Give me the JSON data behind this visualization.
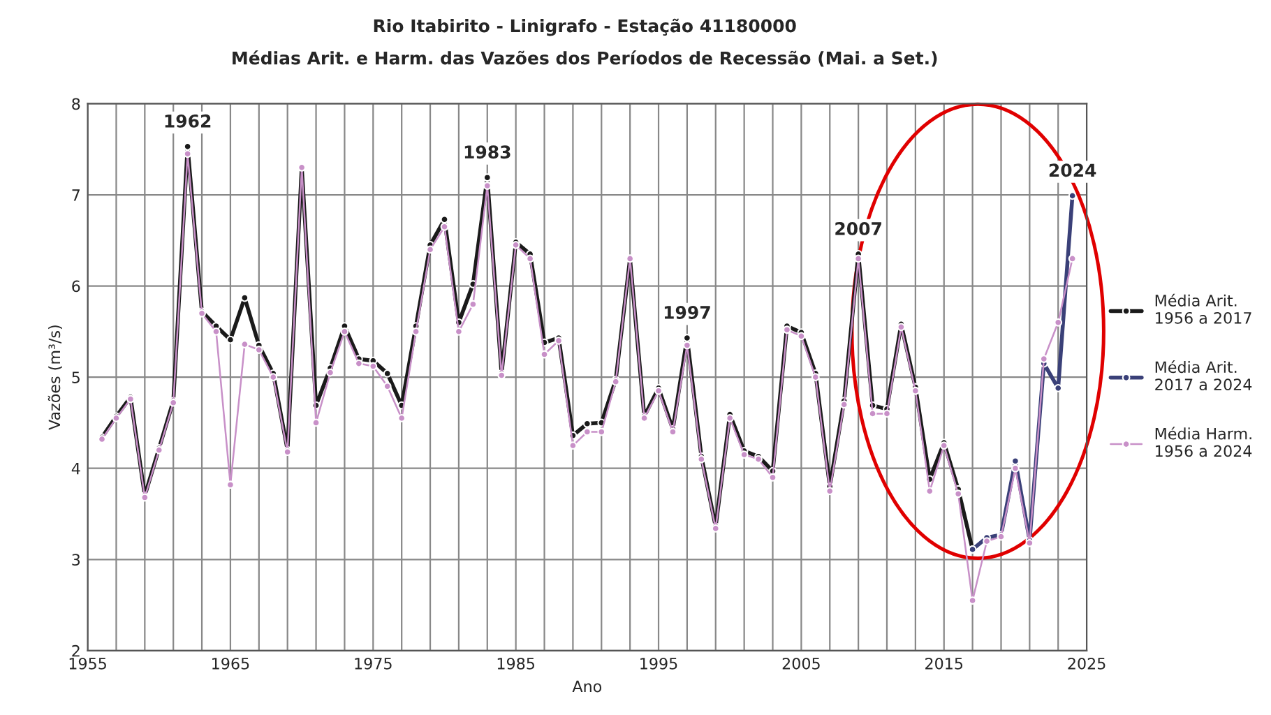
{
  "chart_data": {
    "type": "line",
    "title": "Rio Itabirito - Linigrafo - Estação 41180000",
    "subtitle": "Médias Arit. e Harm. das Vazões dos Períodos de Recessão (Mai. a Set.)",
    "xlabel": "Ano",
    "ylabel": "Vazões (m³/s)",
    "xlim": [
      1955,
      2025
    ],
    "ylim": [
      2,
      8
    ],
    "xticks": [
      1955,
      {
        "value": 1957,
        "label": null
      },
      {
        "value": 1959,
        "label": null
      },
      {
        "value": 1961,
        "label": null
      },
      {
        "value": 1963,
        "label": null
      },
      1965,
      {
        "value": 1967,
        "label": null
      },
      {
        "value": 1969,
        "label": null
      },
      {
        "value": 1971,
        "label": null
      },
      {
        "value": 1973,
        "label": null
      },
      1975,
      {
        "value": 1977,
        "label": null
      },
      {
        "value": 1979,
        "label": null
      },
      {
        "value": 1981,
        "label": null
      },
      {
        "value": 1983,
        "label": null
      },
      1985,
      {
        "value": 1987,
        "label": null
      },
      {
        "value": 1989,
        "label": null
      },
      {
        "value": 1991,
        "label": null
      },
      {
        "value": 1993,
        "label": null
      },
      1995,
      {
        "value": 1997,
        "label": null
      },
      {
        "value": 1999,
        "label": null
      },
      {
        "value": 2001,
        "label": null
      },
      {
        "value": 2003,
        "label": null
      },
      2005,
      {
        "value": 2007,
        "label": null
      },
      {
        "value": 2009,
        "label": null
      },
      {
        "value": 2011,
        "label": null
      },
      {
        "value": 2013,
        "label": null
      },
      2015,
      {
        "value": 2017,
        "label": null
      },
      {
        "value": 2019,
        "label": null
      },
      {
        "value": 2021,
        "label": null
      },
      {
        "value": 2023,
        "label": null
      },
      2025
    ],
    "yticks": [
      2,
      3,
      4,
      5,
      6,
      7,
      8
    ],
    "grid": true,
    "legend": "right",
    "marker": "circle",
    "line_style": "solid",
    "series": [
      {
        "name": "Média Harm.\n1956 a 2024",
        "color": "#c890c8",
        "x": [
          1956,
          1957,
          1958,
          1959,
          1960,
          1961,
          1962,
          1963,
          1964,
          1965,
          1966,
          1967,
          1968,
          1969,
          1970,
          1971,
          1972,
          1973,
          1974,
          1975,
          1976,
          1977,
          1978,
          1979,
          1980,
          1981,
          1982,
          1983,
          1984,
          1985,
          1986,
          1987,
          1988,
          1989,
          1990,
          1991,
          1992,
          1993,
          1994,
          1995,
          1996,
          1997,
          1998,
          1999,
          2000,
          2001,
          2002,
          2003,
          2004,
          2005,
          2006,
          2007,
          2008,
          2009,
          2010,
          2011,
          2012,
          2013,
          2014,
          2015,
          2016,
          2017,
          2018,
          2019,
          2020,
          2021,
          2022,
          2023,
          2024
        ],
        "values": [
          4.32,
          4.55,
          4.76,
          3.68,
          4.2,
          4.72,
          7.45,
          5.7,
          5.5,
          3.82,
          5.36,
          5.3,
          5.0,
          4.18,
          7.3,
          4.5,
          5.05,
          5.5,
          5.15,
          5.12,
          4.9,
          4.55,
          5.5,
          6.4,
          6.65,
          5.5,
          5.8,
          7.1,
          5.02,
          6.45,
          6.3,
          5.25,
          5.4,
          4.25,
          4.4,
          4.4,
          4.95,
          6.3,
          4.55,
          4.85,
          4.4,
          5.35,
          4.1,
          3.34,
          4.55,
          4.15,
          4.1,
          3.9,
          5.52,
          5.45,
          5.0,
          3.75,
          4.7,
          6.3,
          4.6,
          4.6,
          5.55,
          4.85,
          3.75,
          4.25,
          3.72,
          2.55,
          3.2,
          3.25,
          4.0,
          3.18,
          5.2,
          5.6,
          6.3
        ]
      },
      {
        "name": "Média Arit.\n1956 a 2017",
        "color": "#1a1a1a",
        "x": [
          1956,
          1957,
          1958,
          1959,
          1960,
          1961,
          1962,
          1963,
          1964,
          1965,
          1966,
          1967,
          1968,
          1969,
          1970,
          1971,
          1972,
          1973,
          1974,
          1975,
          1976,
          1977,
          1978,
          1979,
          1980,
          1981,
          1982,
          1983,
          1984,
          1985,
          1986,
          1987,
          1988,
          1989,
          1990,
          1991,
          1992,
          1993,
          1994,
          1995,
          1996,
          1997,
          1998,
          1999,
          2000,
          2001,
          2002,
          2003,
          2004,
          2005,
          2006,
          2007,
          2008,
          2009,
          2010,
          2011,
          2012,
          2013,
          2014,
          2015,
          2016,
          2017
        ],
        "values": [
          4.34,
          4.57,
          4.78,
          3.7,
          4.22,
          4.74,
          7.53,
          5.72,
          5.56,
          5.41,
          5.87,
          5.35,
          5.04,
          4.2,
          7.3,
          4.69,
          5.1,
          5.56,
          5.2,
          5.18,
          5.04,
          4.69,
          5.56,
          6.45,
          6.73,
          5.6,
          6.02,
          7.19,
          5.04,
          6.48,
          6.35,
          5.38,
          5.43,
          4.36,
          4.49,
          4.5,
          4.97,
          6.3,
          4.57,
          4.88,
          4.43,
          5.43,
          4.13,
          3.36,
          4.59,
          4.19,
          4.13,
          3.97,
          5.56,
          5.49,
          5.04,
          3.8,
          4.74,
          6.35,
          4.69,
          4.65,
          5.58,
          4.89,
          3.88,
          4.28,
          3.77,
          3.11
        ]
      },
      {
        "name": "Média Arit.\n2017 a 2024",
        "color": "#3a4078",
        "x": [
          2017,
          2018,
          2019,
          2020,
          2021,
          2022,
          2023,
          2024
        ],
        "values": [
          3.11,
          3.24,
          3.27,
          4.08,
          3.21,
          5.15,
          4.88,
          6.99
        ]
      }
    ],
    "annotations": [
      {
        "text": "1962",
        "x": 1962,
        "y": 7.53
      },
      {
        "text": "1983",
        "x": 1983,
        "y": 7.19
      },
      {
        "text": "1997",
        "x": 1997,
        "y": 5.43
      },
      {
        "text": "2007",
        "x": 2009,
        "y": 6.35
      },
      {
        "text": "2024",
        "x": 2024,
        "y": 6.99
      }
    ]
  }
}
